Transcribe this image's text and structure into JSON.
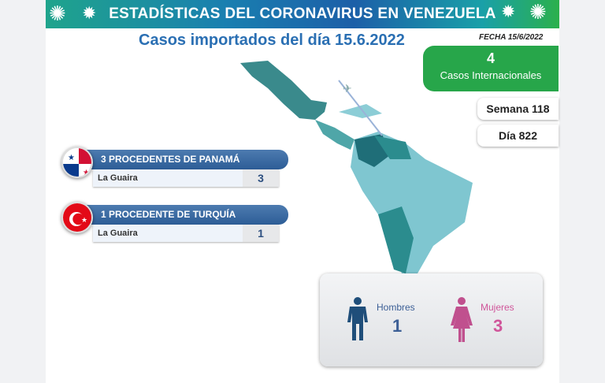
{
  "header": {
    "title": "ESTADÍSTICAS DEL CORONAVIRUS EN VENEZUELA",
    "subtitle": "Casos importados del día 15.6.2022",
    "date": "FECHA 15/6/2022"
  },
  "summary": {
    "international_count": "4",
    "international_label": "Casos Internacionales",
    "week": "Semana 118",
    "day": "Día 822"
  },
  "origins": [
    {
      "country": "Panamá",
      "title": "3 PROCEDENTES DE PANAMÁ",
      "state": "La Guaira",
      "count": "3",
      "flag_icon": "panama-flag-icon"
    },
    {
      "country": "Turquía",
      "title": "1 PROCEDENTE DE TURQUÍA",
      "state": "La Guaira",
      "count": "1",
      "flag_icon": "turkey-flag-icon"
    }
  ],
  "gender": {
    "men_label": "Hombres",
    "men": "1",
    "women_label": "Mujeres",
    "women": "3",
    "men_color": "#1f4e7a",
    "women_color": "#c0508e"
  },
  "colors": {
    "accent": "#2a6fb3",
    "green": "#27a64a",
    "map": "#3a9aa0"
  }
}
